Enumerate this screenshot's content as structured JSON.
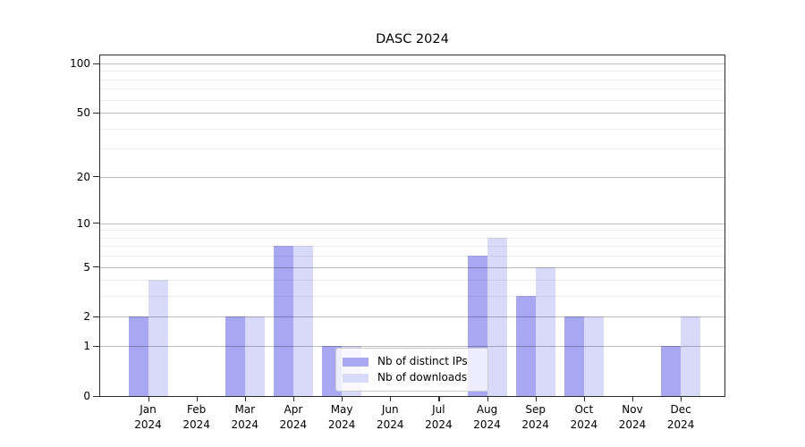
{
  "chart_data": {
    "type": "bar",
    "title": "DASC 2024",
    "xlabel": "",
    "ylabel": "",
    "categories": [
      "Jan 2024",
      "Feb 2024",
      "Mar 2024",
      "Apr 2024",
      "May 2024",
      "Jun 2024",
      "Jul 2024",
      "Aug 2024",
      "Sep 2024",
      "Oct 2024",
      "Nov 2024",
      "Dec 2024"
    ],
    "month_names": [
      "Jan",
      "Feb",
      "Mar",
      "Apr",
      "May",
      "Jun",
      "Jul",
      "Aug",
      "Sep",
      "Oct",
      "Nov",
      "Dec"
    ],
    "year_label": "2024",
    "series": [
      {
        "name": "Nb of distinct IPs",
        "color": "#a7a7f2",
        "values": [
          2,
          0,
          2,
          7,
          1,
          0,
          0,
          6,
          3,
          2,
          0,
          1
        ]
      },
      {
        "name": "Nb of downloads",
        "color": "#d9d9fa",
        "values": [
          4,
          0,
          2,
          7,
          1,
          0,
          0,
          8,
          5,
          2,
          0,
          2
        ]
      }
    ],
    "yscale": "log1p",
    "ylim": [
      0,
      112
    ],
    "y_major_ticks": [
      0,
      1,
      2,
      5,
      10,
      20,
      50,
      100
    ],
    "y_minor_gridlines": [
      3,
      4,
      6,
      7,
      8,
      9,
      30,
      40,
      60,
      70,
      80,
      90
    ],
    "grid": true,
    "legend_position": "lower center"
  },
  "colors": {
    "major_grid": "rgba(0,0,0,0.26)",
    "minor_grid": "rgba(0,0,0,0.07)",
    "spine": "#2b2b2b",
    "background": "#ffffff"
  }
}
